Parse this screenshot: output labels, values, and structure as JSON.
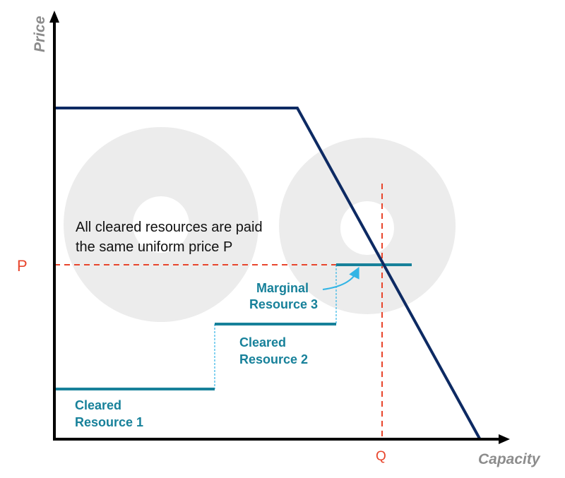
{
  "axes": {
    "y_label": "Price",
    "x_label": "Capacity"
  },
  "markers": {
    "price": "P",
    "quantity": "Q"
  },
  "note": {
    "line1": "All cleared resources are paid",
    "line2": "the same uniform price P"
  },
  "resources": [
    {
      "line1": "Cleared",
      "line2": "Resource 1"
    },
    {
      "line1": "Cleared",
      "line2": "Resource 2"
    },
    {
      "line1": "Marginal",
      "line2": "Resource 3"
    }
  ],
  "colors": {
    "demand": "#0d2a63",
    "supply": "#17819a",
    "clearing": "#e8452c",
    "step_link": "#33b5e5",
    "watermark": "#ececec",
    "axis_label": "#8c8c8c"
  }
}
